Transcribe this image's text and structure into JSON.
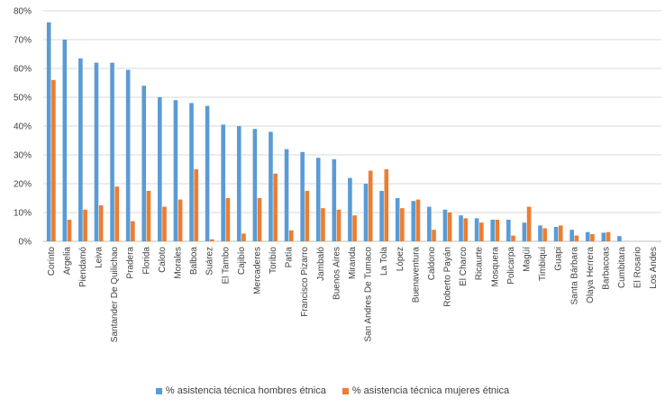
{
  "chart_data": {
    "type": "bar",
    "title": "",
    "xlabel": "",
    "ylabel": "",
    "ylim": [
      0,
      80
    ],
    "y_ticks": [
      "0%",
      "10%",
      "20%",
      "30%",
      "40%",
      "50%",
      "60%",
      "70%",
      "80%"
    ],
    "grid": true,
    "legend_position": "bottom",
    "colors": {
      "hombres": "#5B9BD5",
      "mujeres": "#ED7D31"
    },
    "categories": [
      "Corinto",
      "Argelia",
      "Piendamó",
      "Leiva",
      "Santander De Quilichao",
      "Pradera",
      "Florida",
      "Caloto",
      "Morales",
      "Balboa",
      "Suárez",
      "El Tambo",
      "Cajibío",
      "Mercaderes",
      "Toribío",
      "Patía",
      "Francisco Pizarro",
      "Jambaló",
      "Buenos Aires",
      "Miranda",
      "San Andres De Tumaco",
      "La Tola",
      "López",
      "Buenaventura",
      "Caldono",
      "Roberto Payán",
      "El Charco",
      "Ricaurte",
      "Mosquera",
      "Policarpa",
      "Magüí",
      "Timbiquí",
      "Guapi",
      "Santa Bárbara",
      "Olaya Herrera",
      "Barbacoas",
      "Cumbitara",
      "El Rosario",
      "Los Andes"
    ],
    "series": [
      {
        "name": "% asistencia técnica hombres étnica",
        "values": [
          76,
          70,
          63.5,
          62,
          62,
          59.5,
          54,
          50,
          49,
          48,
          47,
          40.5,
          40,
          39,
          38,
          32,
          31,
          29,
          28.5,
          22,
          20,
          17.5,
          15,
          14,
          12,
          11,
          9,
          8,
          7.5,
          7.5,
          6.5,
          5.5,
          5,
          4,
          3.2,
          3,
          1.8,
          0,
          0
        ]
      },
      {
        "name": "% asistencia técnica mujeres étnica",
        "values": [
          56,
          7.5,
          11,
          12.5,
          19,
          7,
          17.5,
          12,
          14.5,
          25,
          0.7,
          15,
          2.7,
          15,
          23.5,
          3.8,
          17.5,
          11.5,
          11,
          9,
          24.5,
          25,
          11.5,
          14.5,
          4,
          10,
          8,
          6.5,
          7.5,
          2,
          12,
          4.5,
          5.5,
          2,
          2.5,
          3.2,
          0,
          0,
          0
        ]
      }
    ]
  }
}
